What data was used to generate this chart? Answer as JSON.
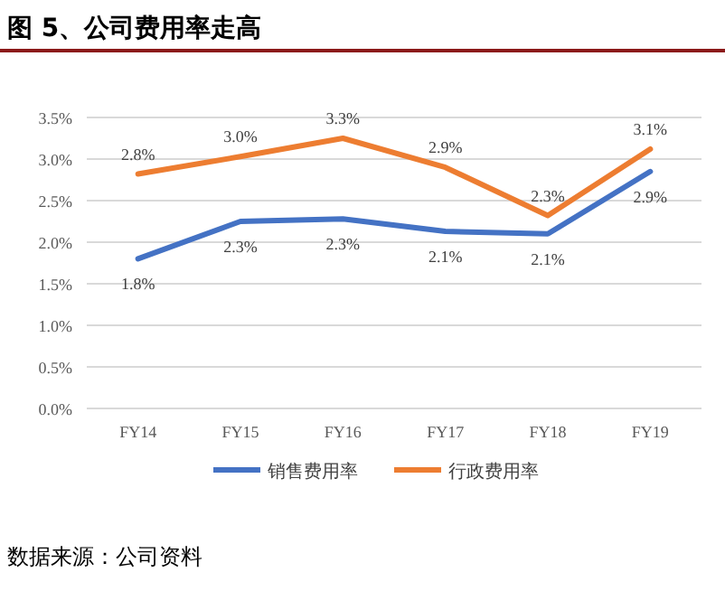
{
  "chart_data": {
    "type": "line",
    "title": "图 5、公司费用率走高",
    "categories": [
      "FY14",
      "FY15",
      "FY16",
      "FY17",
      "FY18",
      "FY19"
    ],
    "series": [
      {
        "name": "销售费用率",
        "color": "#4472c4",
        "values": [
          1.8,
          2.25,
          2.28,
          2.13,
          2.1,
          2.85
        ],
        "value_labels": [
          "1.8%",
          "2.3%",
          "2.3%",
          "2.1%",
          "2.1%",
          "2.9%"
        ]
      },
      {
        "name": "行政费用率",
        "color": "#ed7d31",
        "values": [
          2.82,
          3.03,
          3.25,
          2.9,
          2.32,
          3.12
        ],
        "value_labels": [
          "2.8%",
          "3.0%",
          "3.3%",
          "2.9%",
          "2.3%",
          "3.1%"
        ]
      }
    ],
    "ylim": [
      0,
      3.5
    ],
    "yticks": [
      {
        "value": 0,
        "label": "0.0%"
      },
      {
        "value": 0.5,
        "label": "0.5%"
      },
      {
        "value": 1,
        "label": "1.0%"
      },
      {
        "value": 1.5,
        "label": "1.5%"
      },
      {
        "value": 2,
        "label": "2.0%"
      },
      {
        "value": 2.5,
        "label": "2.5%"
      },
      {
        "value": 3,
        "label": "3.0%"
      },
      {
        "value": 3.5,
        "label": "3.5%"
      }
    ],
    "grid": "y",
    "legend": "bottom",
    "marker": "none",
    "line_style": "solid",
    "annotations": [
      "数据来源：公司资料"
    ]
  }
}
